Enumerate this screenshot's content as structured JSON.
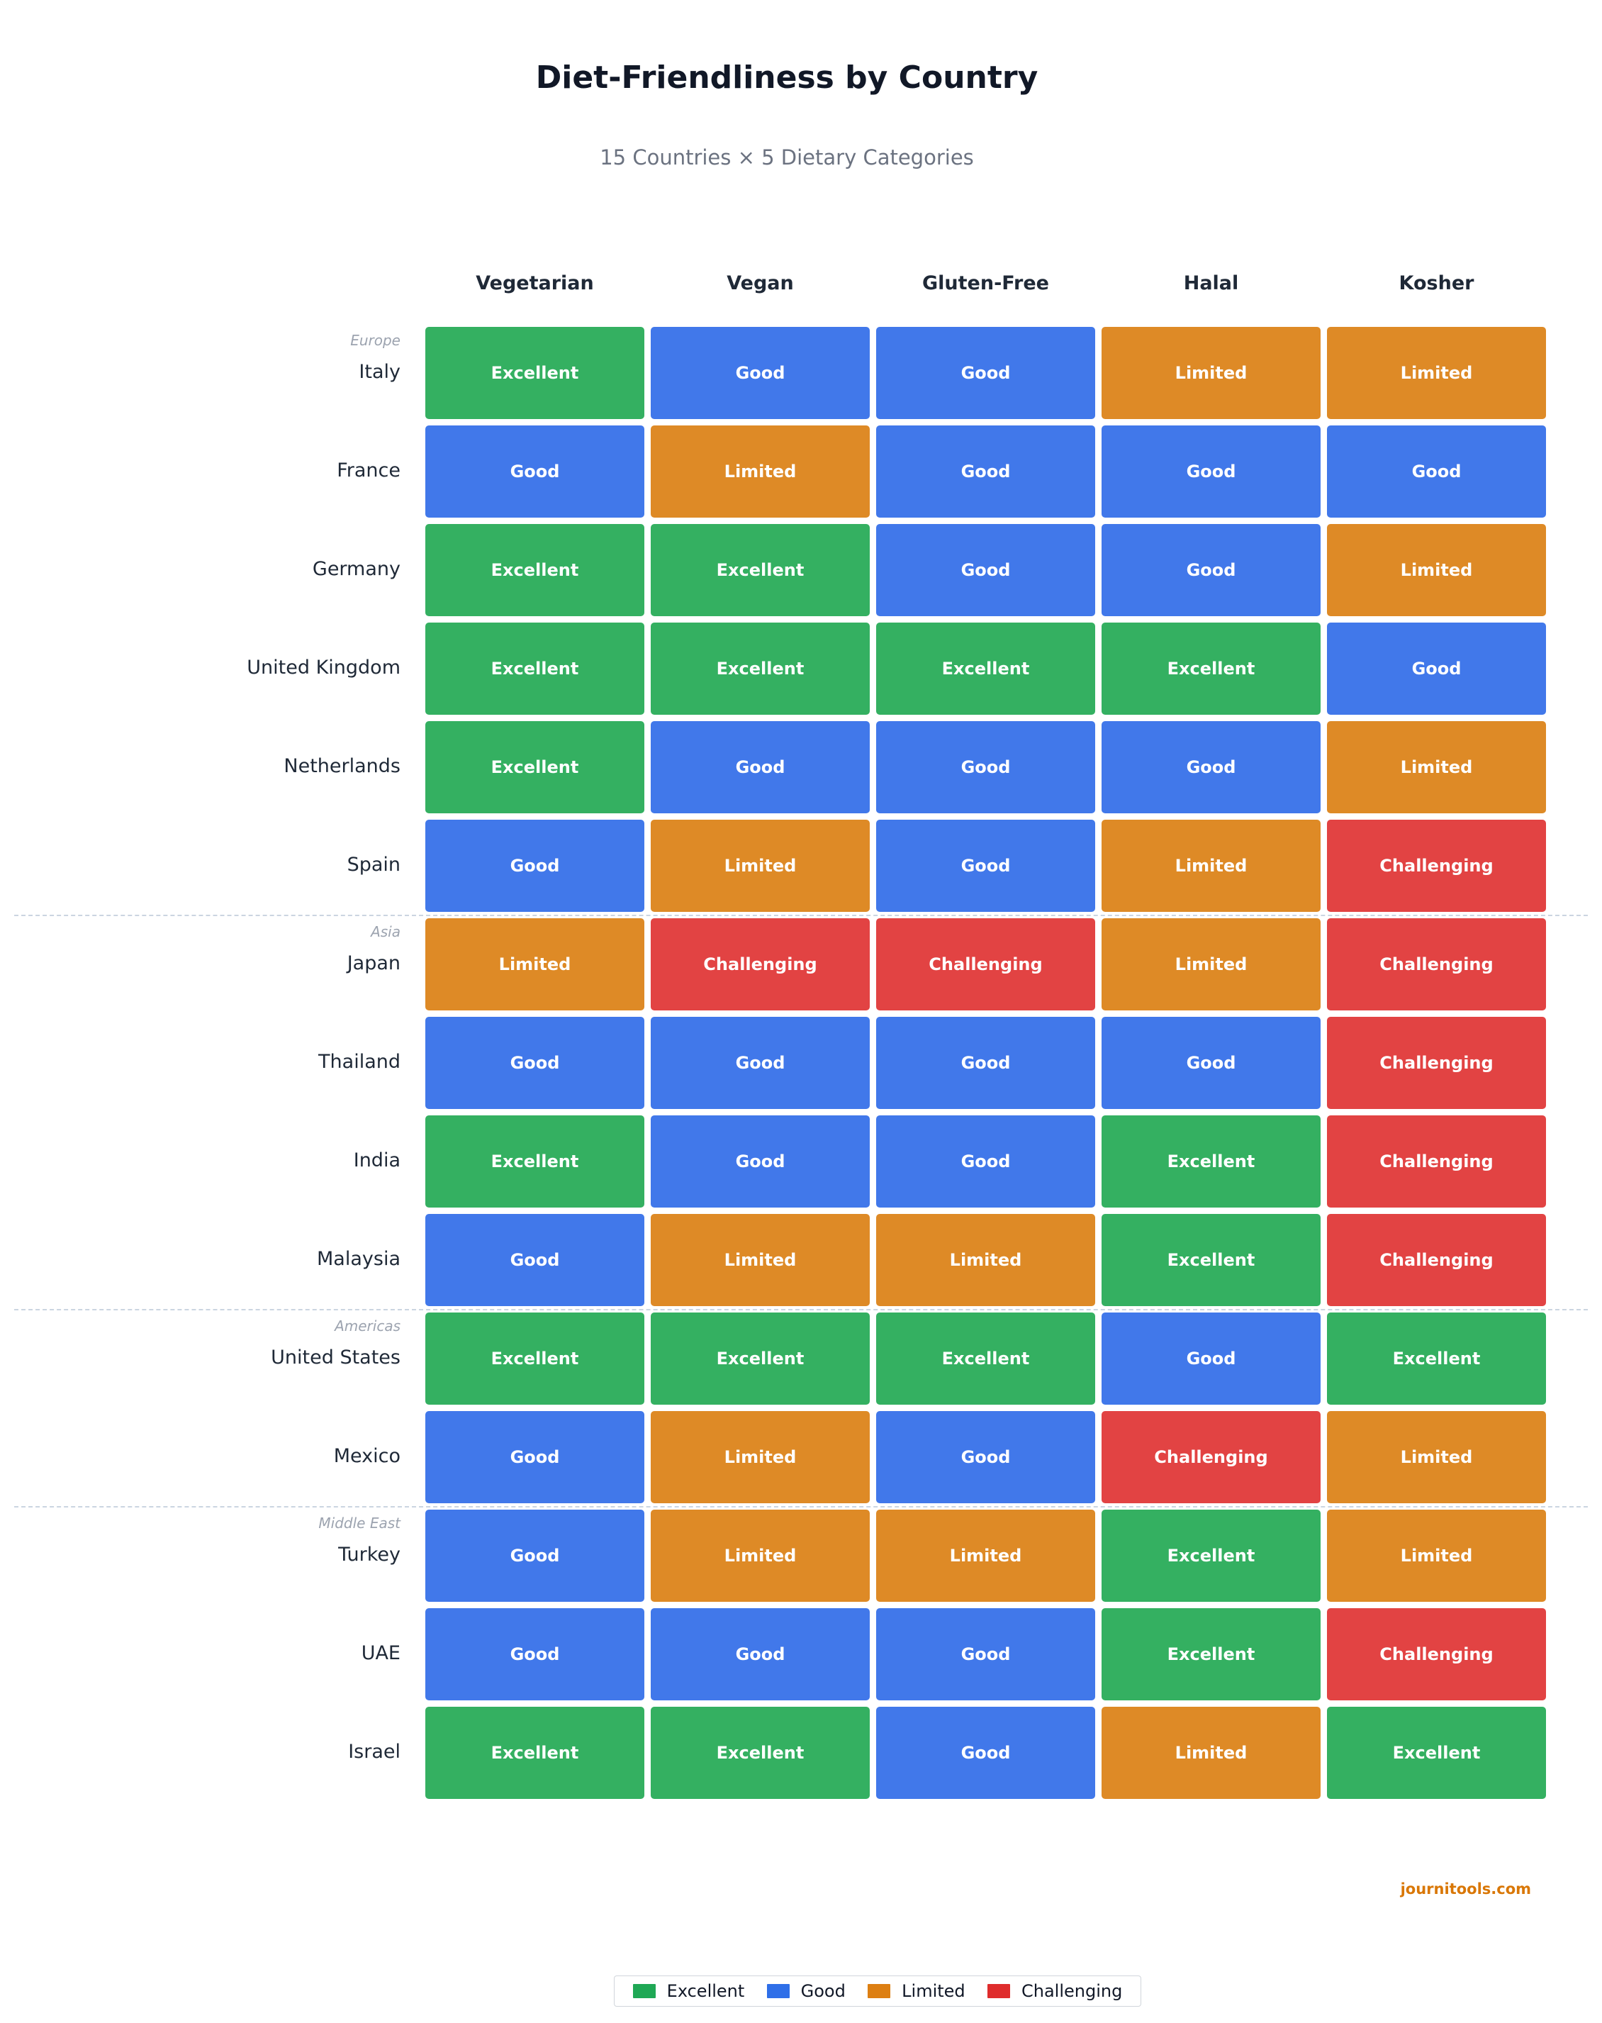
{
  "title": "Diet-Friendliness by Country",
  "subtitle": "15 Countries × 5 Dietary Categories",
  "watermark": "journitools.com",
  "colors": {
    "Excellent": "#34b061",
    "Good": "#4178ea",
    "Limited": "#de8a26",
    "Challenging": "#e24343"
  },
  "legend": [
    {
      "label": "Excellent",
      "color": "#1fa855"
    },
    {
      "label": "Good",
      "color": "#2f6fe8"
    },
    {
      "label": "Limited",
      "color": "#dd7f12"
    },
    {
      "label": "Challenging",
      "color": "#df2c2c"
    }
  ],
  "chart_data": {
    "type": "heatmap",
    "columns": [
      "Vegetarian",
      "Vegan",
      "Gluten-Free",
      "Halal",
      "Kosher"
    ],
    "groups": [
      {
        "region": "Europe",
        "rows": [
          {
            "country": "Italy",
            "values": [
              "Excellent",
              "Good",
              "Good",
              "Limited",
              "Limited"
            ]
          },
          {
            "country": "France",
            "values": [
              "Good",
              "Limited",
              "Good",
              "Good",
              "Good"
            ]
          },
          {
            "country": "Germany",
            "values": [
              "Excellent",
              "Excellent",
              "Good",
              "Good",
              "Limited"
            ]
          },
          {
            "country": "United Kingdom",
            "values": [
              "Excellent",
              "Excellent",
              "Excellent",
              "Excellent",
              "Good"
            ]
          },
          {
            "country": "Netherlands",
            "values": [
              "Excellent",
              "Good",
              "Good",
              "Good",
              "Limited"
            ]
          },
          {
            "country": "Spain",
            "values": [
              "Good",
              "Limited",
              "Good",
              "Limited",
              "Challenging"
            ]
          }
        ]
      },
      {
        "region": "Asia",
        "rows": [
          {
            "country": "Japan",
            "values": [
              "Limited",
              "Challenging",
              "Challenging",
              "Limited",
              "Challenging"
            ]
          },
          {
            "country": "Thailand",
            "values": [
              "Good",
              "Good",
              "Good",
              "Good",
              "Challenging"
            ]
          },
          {
            "country": "India",
            "values": [
              "Excellent",
              "Good",
              "Good",
              "Excellent",
              "Challenging"
            ]
          },
          {
            "country": "Malaysia",
            "values": [
              "Good",
              "Limited",
              "Limited",
              "Excellent",
              "Challenging"
            ]
          }
        ]
      },
      {
        "region": "Americas",
        "rows": [
          {
            "country": "United States",
            "values": [
              "Excellent",
              "Excellent",
              "Excellent",
              "Good",
              "Excellent"
            ]
          },
          {
            "country": "Mexico",
            "values": [
              "Good",
              "Limited",
              "Good",
              "Challenging",
              "Limited"
            ]
          }
        ]
      },
      {
        "region": "Middle East",
        "rows": [
          {
            "country": "Turkey",
            "values": [
              "Good",
              "Limited",
              "Limited",
              "Excellent",
              "Limited"
            ]
          },
          {
            "country": "UAE",
            "values": [
              "Good",
              "Good",
              "Good",
              "Excellent",
              "Challenging"
            ]
          },
          {
            "country": "Israel",
            "values": [
              "Excellent",
              "Excellent",
              "Good",
              "Limited",
              "Excellent"
            ]
          }
        ]
      }
    ]
  }
}
